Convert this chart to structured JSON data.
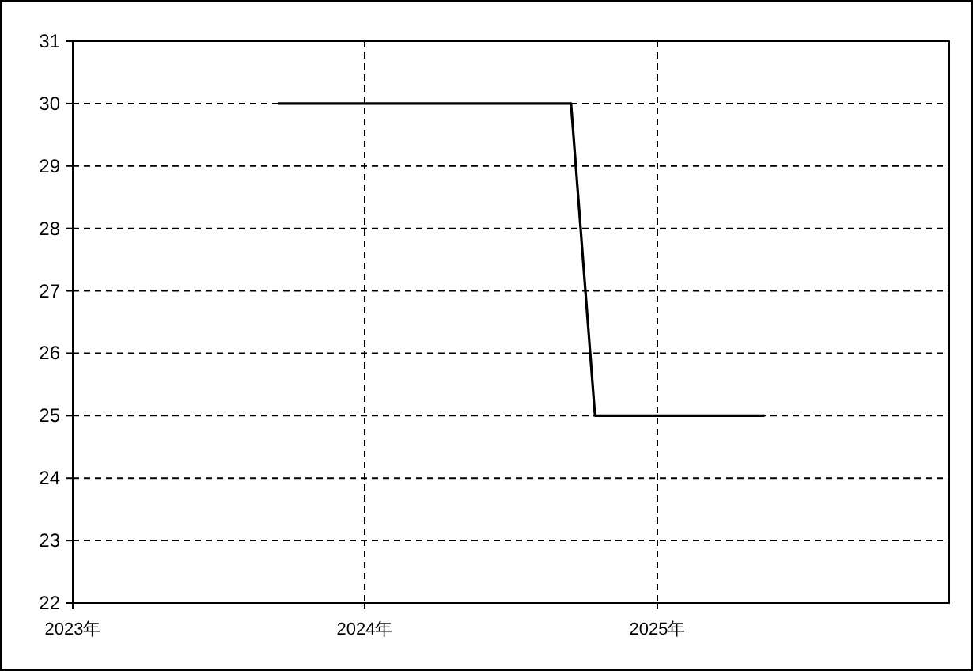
{
  "chart_data": {
    "type": "line",
    "x": [
      "2023-09-15",
      "2024-09-15",
      "2024-10-15",
      "2025-05-15"
    ],
    "series": [
      {
        "color": "#000000",
        "values": [
          30,
          30,
          25,
          25
        ]
      }
    ],
    "xlim": [
      "2023",
      "2026"
    ],
    "xticks": [
      {
        "value": "2023",
        "label": "2023年"
      },
      {
        "value": "2024",
        "label": "2024年"
      },
      {
        "value": "2025",
        "label": "2025年"
      }
    ],
    "ylim": [
      22,
      31
    ],
    "yticks": [
      22,
      23,
      24,
      25,
      26,
      27,
      28,
      29,
      30,
      31
    ],
    "grid": true,
    "line_style": "solid",
    "marker": "none"
  }
}
